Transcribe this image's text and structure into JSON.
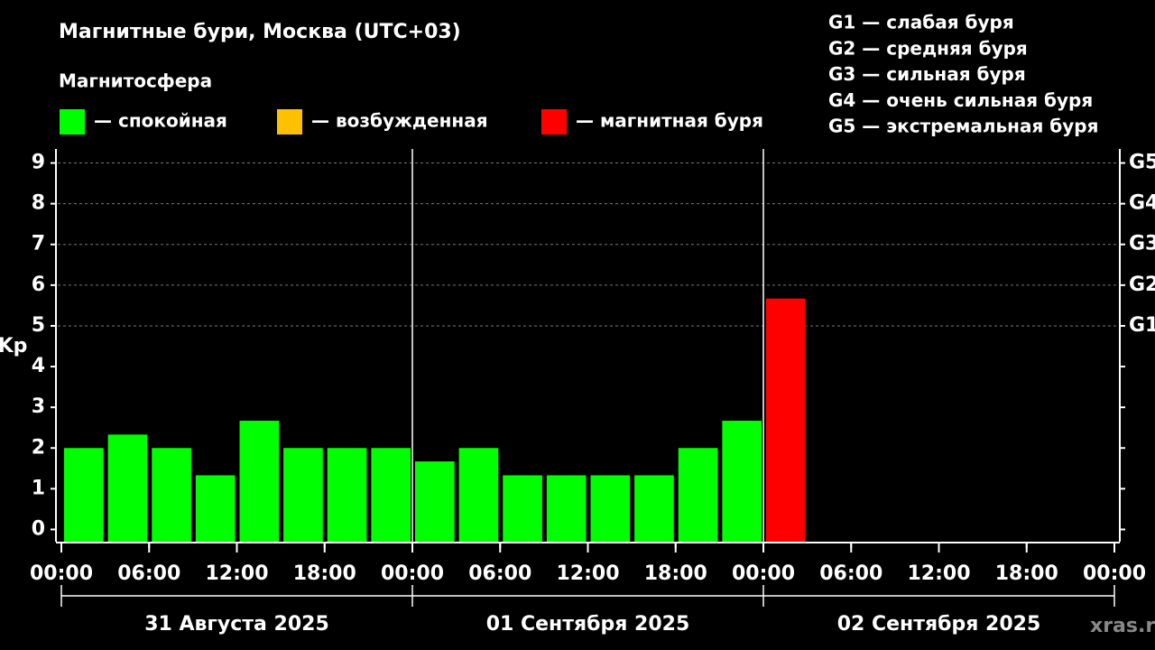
{
  "chart_data": {
    "type": "bar",
    "title": "Магнитные бури, Москва (UTC+03)",
    "subtitle": "Магнитосфера",
    "legend": [
      {
        "label": "— спокойная",
        "color": "#00ff00"
      },
      {
        "label": "— возбужденная",
        "color": "#ffc000"
      },
      {
        "label": "— магнитная буря",
        "color": "#ff0000"
      }
    ],
    "g_scale": [
      "G1 — слабая буря",
      "G2 — средняя буря",
      "G3 — сильная буря",
      "G4 — очень сильная буря",
      "G5 — экстремальная буря"
    ],
    "ylabel": "Kp",
    "x": [
      0,
      3,
      6,
      9,
      12,
      15,
      18,
      21,
      24,
      27,
      30,
      33,
      36,
      39,
      42,
      45,
      48
    ],
    "values": [
      2,
      2.33,
      2,
      1.33,
      2.67,
      2,
      2,
      2,
      1.67,
      2,
      1.33,
      1.33,
      1.33,
      1.33,
      2,
      2.67,
      5.67
    ],
    "colors": [
      "#00ff00",
      "#00ff00",
      "#00ff00",
      "#00ff00",
      "#00ff00",
      "#00ff00",
      "#00ff00",
      "#00ff00",
      "#00ff00",
      "#00ff00",
      "#00ff00",
      "#00ff00",
      "#00ff00",
      "#00ff00",
      "#00ff00",
      "#00ff00",
      "#ff0000"
    ],
    "xlim": [
      0,
      72
    ],
    "xticks": [
      {
        "value": 0,
        "label": "00:00"
      },
      {
        "value": 6,
        "label": "06:00"
      },
      {
        "value": 12,
        "label": "12:00"
      },
      {
        "value": 18,
        "label": "18:00"
      },
      {
        "value": 24,
        "label": "00:00"
      },
      {
        "value": 30,
        "label": "06:00"
      },
      {
        "value": 36,
        "label": "12:00"
      },
      {
        "value": 42,
        "label": "18:00"
      },
      {
        "value": 48,
        "label": "00:00"
      },
      {
        "value": 54,
        "label": "06:00"
      },
      {
        "value": 60,
        "label": "12:00"
      },
      {
        "value": 66,
        "label": "18:00"
      },
      {
        "value": 72,
        "label": "00:00"
      }
    ],
    "ylim": [
      -0.3,
      9.3
    ],
    "yticks": [
      0,
      1,
      2,
      3,
      4,
      5,
      6,
      7,
      8,
      9
    ],
    "y2lim": [
      -0.3,
      9.3
    ],
    "y2ticks": [
      {
        "value": 5,
        "label": "G1"
      },
      {
        "value": 6,
        "label": "G2"
      },
      {
        "value": 7,
        "label": "G3"
      },
      {
        "value": 8,
        "label": "G4"
      },
      {
        "value": 9,
        "label": "G5"
      }
    ],
    "grid": true,
    "day_labels": [
      "31 Августа 2025",
      "01 Сентября 2025",
      "02 Сентября 2025"
    ],
    "watermark": "xras.ru"
  }
}
